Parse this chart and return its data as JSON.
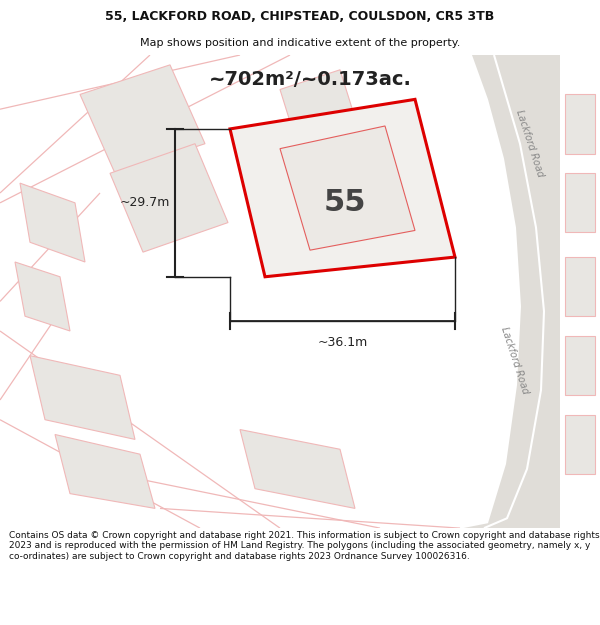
{
  "title_line1": "55, LACKFORD ROAD, CHIPSTEAD, COULSDON, CR5 3TB",
  "title_line2": "Map shows position and indicative extent of the property.",
  "footer_text": "Contains OS data © Crown copyright and database right 2021. This information is subject to Crown copyright and database rights 2023 and is reproduced with the permission of HM Land Registry. The polygons (including the associated geometry, namely x, y co-ordinates) are subject to Crown copyright and database rights 2023 Ordnance Survey 100026316.",
  "area_label": "~702m²/~0.173ac.",
  "property_number": "55",
  "dim_width": "~36.1m",
  "dim_height": "~29.7m",
  "road_label_top": "Lackford Road",
  "road_label_bottom": "Lackford Road",
  "map_bg": "#f2f0ed",
  "property_fill": "#f2f0ed",
  "property_edge": "#dd0000",
  "neighbor_fill": "#e8e6e2",
  "neighbor_edge": "#f0b8b8",
  "road_fill": "#e0ddd8",
  "road_center_line": "#ffffff",
  "dim_color": "#222222",
  "title_bg": "#ffffff",
  "footer_bg": "#ffffff",
  "title_fontsize": 9,
  "subtitle_fontsize": 8,
  "area_fontsize": 14,
  "number_fontsize": 22,
  "dim_fontsize": 9,
  "road_fontsize": 7,
  "footer_fontsize": 6.5
}
